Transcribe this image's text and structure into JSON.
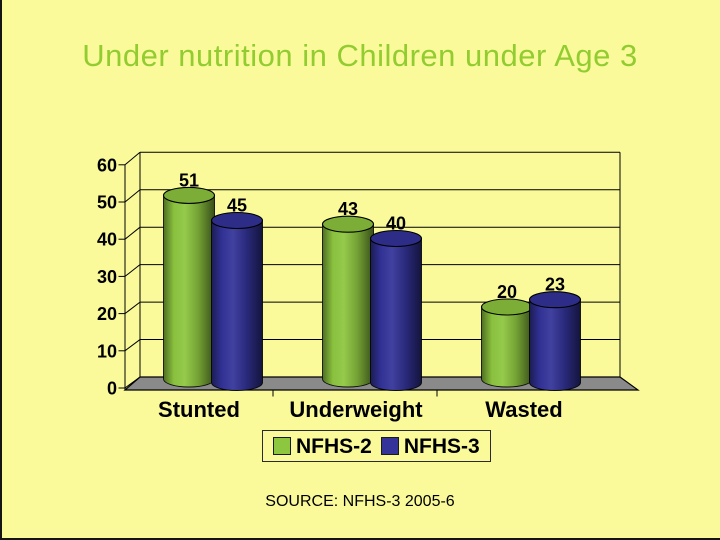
{
  "slide": {
    "background_color": "#FAFA9B",
    "edge_border_color": "#151515",
    "title_color": "#92CC31",
    "source_note": "SOURCE: NFHS-3 2005-6"
  },
  "chart_data": {
    "type": "bar",
    "style": "3d-cylinder",
    "title": "Under nutrition in Children under Age 3",
    "categories": [
      "Stunted",
      "Underweight",
      "Wasted"
    ],
    "series": [
      {
        "name": "NFHS-2",
        "color": "#8DC63F",
        "values": [
          51,
          43,
          20
        ]
      },
      {
        "name": "NFHS-3",
        "color": "#333399",
        "values": [
          45,
          40,
          23
        ]
      }
    ],
    "xlabel": "",
    "ylabel": "",
    "ylim": [
      0,
      60
    ],
    "yticks": [
      0,
      10,
      20,
      30,
      40,
      50,
      60
    ],
    "grid": true,
    "data_labels": true,
    "legend_position": "bottom",
    "floor_color": "#8A8A8A",
    "axis_color": "#000000",
    "label_color": "#000000"
  }
}
